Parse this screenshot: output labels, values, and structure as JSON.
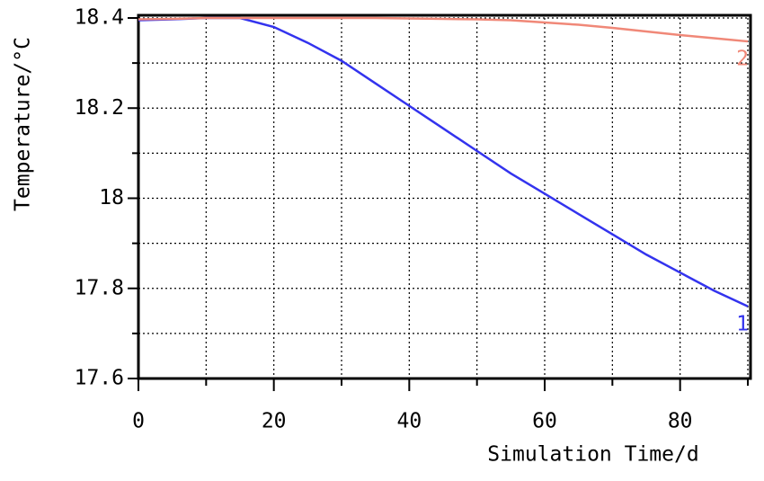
{
  "chart_data": {
    "type": "line",
    "x_label": "Simulation Time/d",
    "y_label": "Temperature/°C",
    "x": [
      0,
      5,
      10,
      15,
      20,
      25,
      30,
      35,
      40,
      45,
      50,
      55,
      60,
      65,
      70,
      75,
      80,
      85,
      90
    ],
    "series": [
      {
        "name": "1",
        "color": "#3333ee",
        "values": [
          18.395,
          18.397,
          18.4,
          18.4,
          18.38,
          18.345,
          18.305,
          18.255,
          18.205,
          18.155,
          18.105,
          18.055,
          18.01,
          17.965,
          17.92,
          17.875,
          17.835,
          17.795,
          17.76
        ]
      },
      {
        "name": "2",
        "color": "#f08878",
        "values": [
          18.397,
          18.398,
          18.4,
          18.4,
          18.4,
          18.4,
          18.4,
          18.4,
          18.399,
          18.398,
          18.397,
          18.395,
          18.39,
          18.385,
          18.378,
          18.37,
          18.362,
          18.355,
          18.348
        ]
      }
    ],
    "xlim": [
      0,
      90
    ],
    "xticks": [
      0,
      20,
      40,
      60,
      80
    ],
    "ylim": [
      17.6,
      18.4
    ],
    "yticks": [
      17.6,
      17.8,
      18,
      18.2,
      18.4
    ],
    "grid": true,
    "minor_grid": true
  }
}
